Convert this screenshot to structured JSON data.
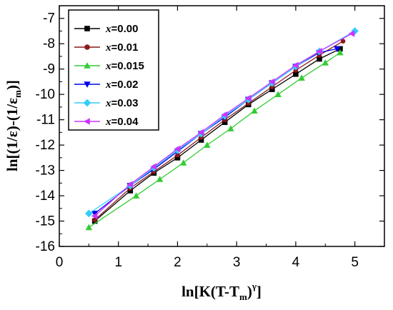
{
  "chart_data": {
    "type": "line",
    "xlabel_parts": {
      "main": "ln[K(T-T",
      "sub": "m",
      "close": ")",
      "sup": "γ",
      "end": "]"
    },
    "ylabel_parts": {
      "main": "ln[(1/ε)-(1/ε",
      "sub": "m",
      "end": ")]"
    },
    "xlim": [
      0,
      5.5
    ],
    "ylim": [
      -16,
      -6.5
    ],
    "x_ticks": [
      0,
      1,
      2,
      3,
      4,
      5
    ],
    "y_ticks": [
      -16,
      -15,
      -14,
      -13,
      -12,
      -11,
      -10,
      -9,
      -8,
      -7
    ],
    "legend_position": "top-left",
    "legend_var": "x",
    "series": [
      {
        "name": "=0.00",
        "color": "#000000",
        "marker": "square",
        "x": [
          0.6,
          1.2,
          1.6,
          2.0,
          2.4,
          2.8,
          3.2,
          3.6,
          4.0,
          4.4,
          4.75
        ],
        "y": [
          -15.0,
          -13.8,
          -13.1,
          -12.5,
          -11.8,
          -11.1,
          -10.4,
          -9.8,
          -9.2,
          -8.6,
          -8.2
        ]
      },
      {
        "name": "=0.01",
        "color": "#8B1A1A",
        "marker": "circle",
        "x": [
          0.6,
          1.2,
          1.6,
          2.0,
          2.4,
          2.8,
          3.2,
          3.6,
          4.0,
          4.4,
          4.8
        ],
        "y": [
          -14.95,
          -13.7,
          -13.05,
          -12.4,
          -11.7,
          -11.0,
          -10.35,
          -9.7,
          -9.05,
          -8.45,
          -7.9
        ]
      },
      {
        "name": "=0.015",
        "color": "#33CC33",
        "marker": "triangle-up",
        "x": [
          0.5,
          1.3,
          1.7,
          2.1,
          2.5,
          2.9,
          3.3,
          3.7,
          4.1,
          4.5,
          4.75
        ],
        "y": [
          -15.25,
          -14.0,
          -13.35,
          -12.7,
          -12.0,
          -11.35,
          -10.65,
          -10.0,
          -9.35,
          -8.75,
          -8.35
        ]
      },
      {
        "name": "=0.02",
        "color": "#0000EE",
        "marker": "triangle-down",
        "x": [
          0.6,
          1.2,
          1.6,
          2.0,
          2.4,
          2.8,
          3.2,
          3.6,
          4.0,
          4.4,
          4.7
        ],
        "y": [
          -14.7,
          -13.6,
          -12.95,
          -12.25,
          -11.55,
          -10.9,
          -10.2,
          -9.55,
          -8.9,
          -8.35,
          -8.2
        ]
      },
      {
        "name": "=0.03",
        "color": "#33CCFF",
        "marker": "diamond",
        "x": [
          0.5,
          1.2,
          1.6,
          2.0,
          2.4,
          2.8,
          3.2,
          3.6,
          4.0,
          4.4,
          5.0
        ],
        "y": [
          -14.7,
          -13.6,
          -12.9,
          -12.2,
          -11.55,
          -10.85,
          -10.2,
          -9.55,
          -8.9,
          -8.3,
          -7.5
        ]
      },
      {
        "name": "=0.04",
        "color": "#CC33FF",
        "marker": "triangle-left",
        "x": [
          0.6,
          1.2,
          1.6,
          2.0,
          2.4,
          2.8,
          3.2,
          3.6,
          4.0,
          4.4,
          4.95
        ],
        "y": [
          -14.8,
          -13.55,
          -12.85,
          -12.15,
          -11.5,
          -10.8,
          -10.15,
          -9.5,
          -8.85,
          -8.3,
          -7.6
        ]
      }
    ]
  }
}
